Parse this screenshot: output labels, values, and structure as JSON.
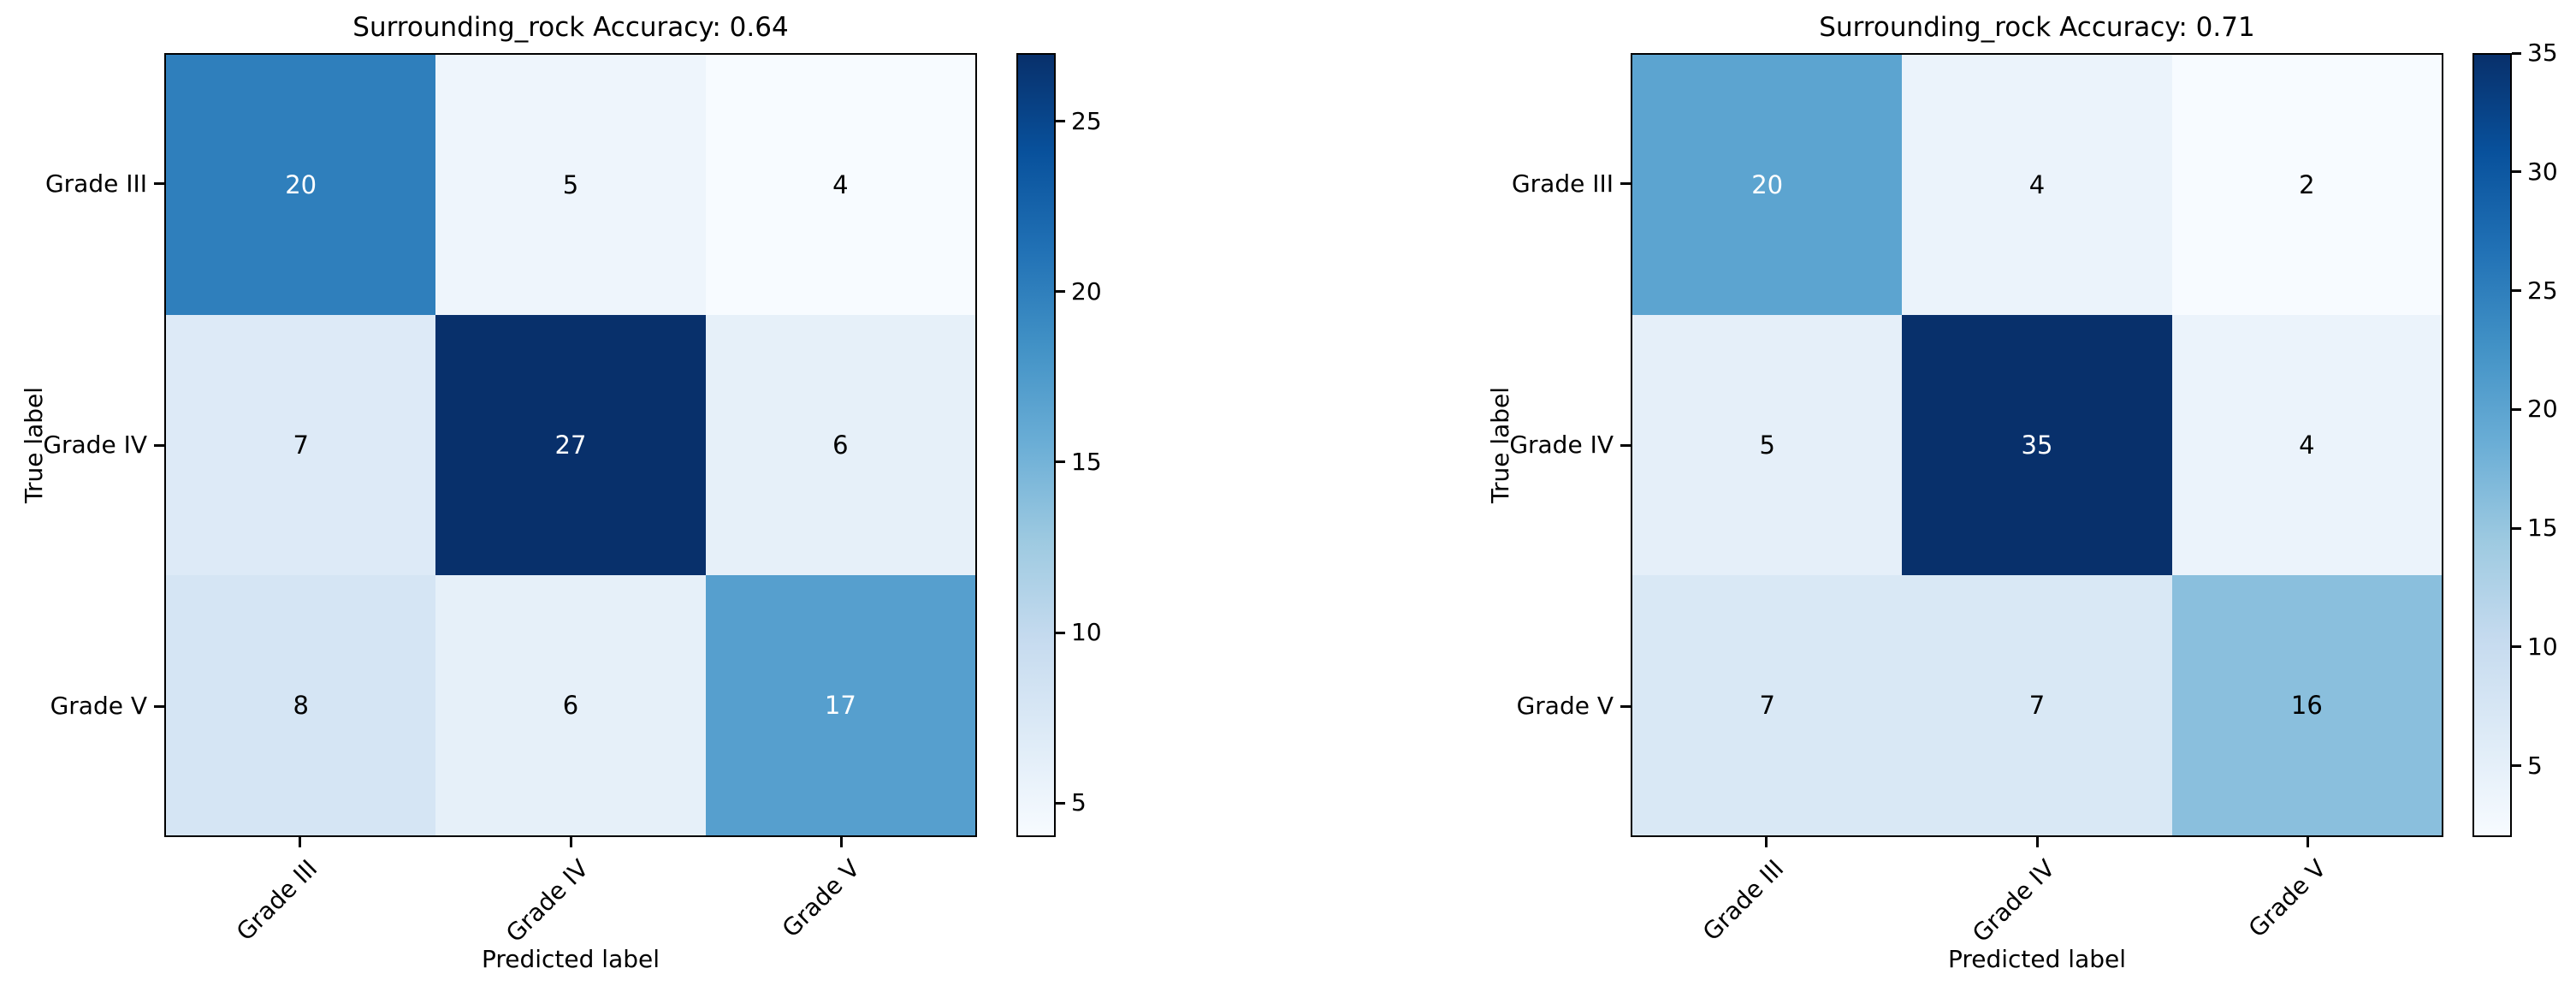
{
  "figure": {
    "background": "#ffffff"
  },
  "chart_data": [
    {
      "type": "heatmap",
      "title": "Surrounding_rock Accuracy: 0.64",
      "accuracy_shown": "0.64",
      "xlabel": "Predicted label",
      "ylabel": "True label",
      "x_categories": [
        "Grade III",
        "Grade IV",
        "Grade V"
      ],
      "y_categories": [
        "Grade III",
        "Grade IV",
        "Grade V"
      ],
      "matrix": [
        [
          20,
          5,
          4
        ],
        [
          7,
          27,
          6
        ],
        [
          8,
          6,
          17
        ]
      ],
      "vmin": 4,
      "vmax": 27,
      "colormap": "Blues",
      "colorbar_position": "right",
      "colorbar_ticks": [
        5,
        10,
        15,
        20,
        25
      ],
      "grid": false,
      "xtick_rotation_deg": 45
    },
    {
      "type": "heatmap",
      "title": "Surrounding_rock Accuracy: 0.71",
      "accuracy_shown": "0.71",
      "xlabel": "Predicted label",
      "ylabel": "True label",
      "x_categories": [
        "Grade III",
        "Grade IV",
        "Grade V"
      ],
      "y_categories": [
        "Grade III",
        "Grade IV",
        "Grade V"
      ],
      "matrix": [
        [
          20,
          4,
          2
        ],
        [
          5,
          35,
          4
        ],
        [
          7,
          7,
          16
        ]
      ],
      "vmin": 2,
      "vmax": 35,
      "colormap": "Blues",
      "colorbar_position": "right",
      "colorbar_ticks": [
        5,
        10,
        15,
        20,
        25,
        30,
        35
      ],
      "grid": false,
      "xtick_rotation_deg": 45
    }
  ],
  "colors": {
    "blues_colormap_stops": [
      "#f7fbff",
      "#deebf7",
      "#c6dbef",
      "#9ecae1",
      "#6baed6",
      "#4292c6",
      "#2171b5",
      "#08519c",
      "#08306b"
    ],
    "cell_text_light": "#ffffff",
    "cell_text_dark": "#000000",
    "axis_color": "#000000",
    "background": "#ffffff"
  }
}
